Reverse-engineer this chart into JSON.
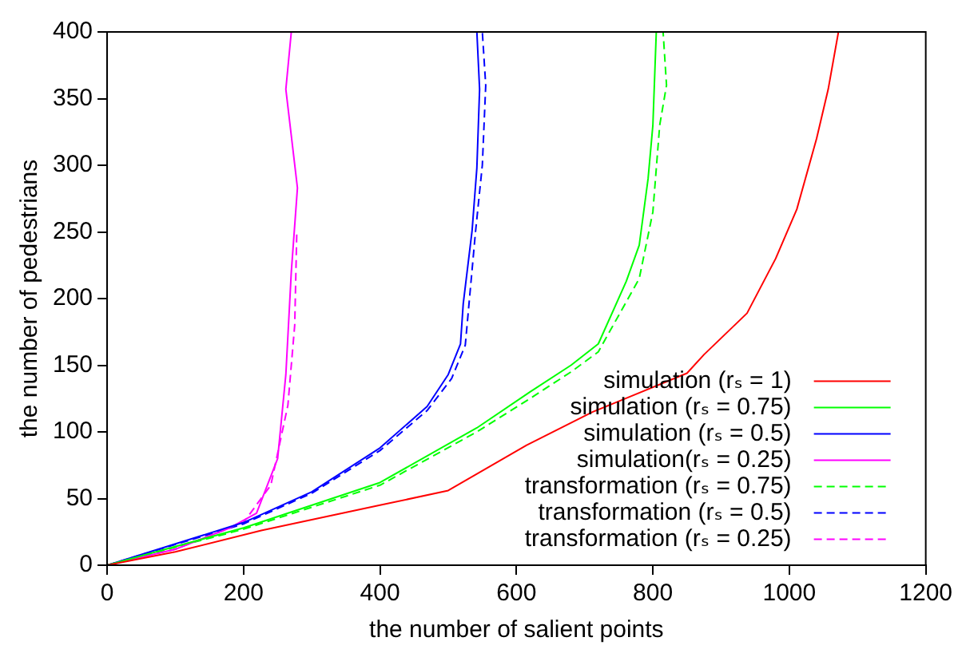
{
  "chart_data": {
    "type": "line",
    "xlabel": "the number of salient points",
    "ylabel": "the number of pedestrians",
    "xlim": [
      0,
      1200
    ],
    "xticks": [
      0,
      200,
      400,
      600,
      800,
      1000,
      1200
    ],
    "ylim": [
      0,
      400
    ],
    "yticks": [
      0,
      50,
      100,
      150,
      200,
      250,
      300,
      350,
      400
    ],
    "grid": false,
    "legend": "bottom right",
    "marker": "none",
    "series": [
      {
        "name": "simulation (rₛ = 1)",
        "color": "#ff0000",
        "line_style": "solid",
        "x": [
          0,
          100,
          226,
          400,
          500,
          615,
          712,
          850,
          875,
          938,
          980,
          1011,
          1040,
          1057,
          1072
        ],
        "values": [
          0,
          10,
          26,
          45,
          56,
          90,
          115,
          144,
          158,
          189,
          230,
          267,
          320,
          357,
          400
        ]
      },
      {
        "name": "simulation (rₛ = 0.75)",
        "color": "#00ff00",
        "line_style": "solid",
        "x": [
          0,
          200,
          400,
          542,
          620,
          680,
          720,
          761,
          780,
          793,
          800,
          805
        ],
        "values": [
          0,
          28,
          62,
          103,
          130,
          150,
          166,
          213,
          240,
          290,
          330,
          400
        ]
      },
      {
        "name": "simulation (rₛ = 0.5)",
        "color": "#0000ff",
        "line_style": "solid",
        "x": [
          0,
          200,
          300,
          400,
          469,
          500,
          518,
          522,
          535,
          542,
          546,
          542
        ],
        "values": [
          0,
          32,
          55,
          88,
          119,
          143,
          166,
          196,
          251,
          298,
          357,
          400
        ]
      },
      {
        "name": "simulation(rₛ = 0.25)",
        "color": "#ff00ff",
        "line_style": "solid",
        "x": [
          0,
          100,
          180,
          219,
          250,
          262,
          270,
          279,
          262,
          270
        ],
        "values": [
          0,
          12,
          28,
          39,
          80,
          143,
          220,
          283,
          357,
          400
        ]
      },
      {
        "name": "transformation (rₛ = 0.75)",
        "color": "#00ff00",
        "line_style": "dashed",
        "x": [
          0,
          200,
          400,
          542,
          620,
          680,
          720,
          780,
          800,
          810,
          820,
          815
        ],
        "values": [
          0,
          27,
          60,
          100,
          125,
          145,
          160,
          215,
          265,
          330,
          360,
          400
        ]
      },
      {
        "name": "transformation (rₛ = 0.5)",
        "color": "#0000ff",
        "line_style": "dashed",
        "x": [
          0,
          200,
          300,
          400,
          469,
          505,
          525,
          540,
          550,
          555,
          550
        ],
        "values": [
          0,
          31,
          54,
          86,
          116,
          140,
          165,
          250,
          300,
          360,
          400
        ]
      },
      {
        "name": "transformation (rₛ = 0.25)",
        "color": "#ff00ff",
        "line_style": "dashed",
        "x": [
          0,
          100,
          200,
          240,
          265,
          275,
          278
        ],
        "values": [
          0,
          12,
          32,
          60,
          120,
          180,
          249
        ]
      }
    ]
  }
}
